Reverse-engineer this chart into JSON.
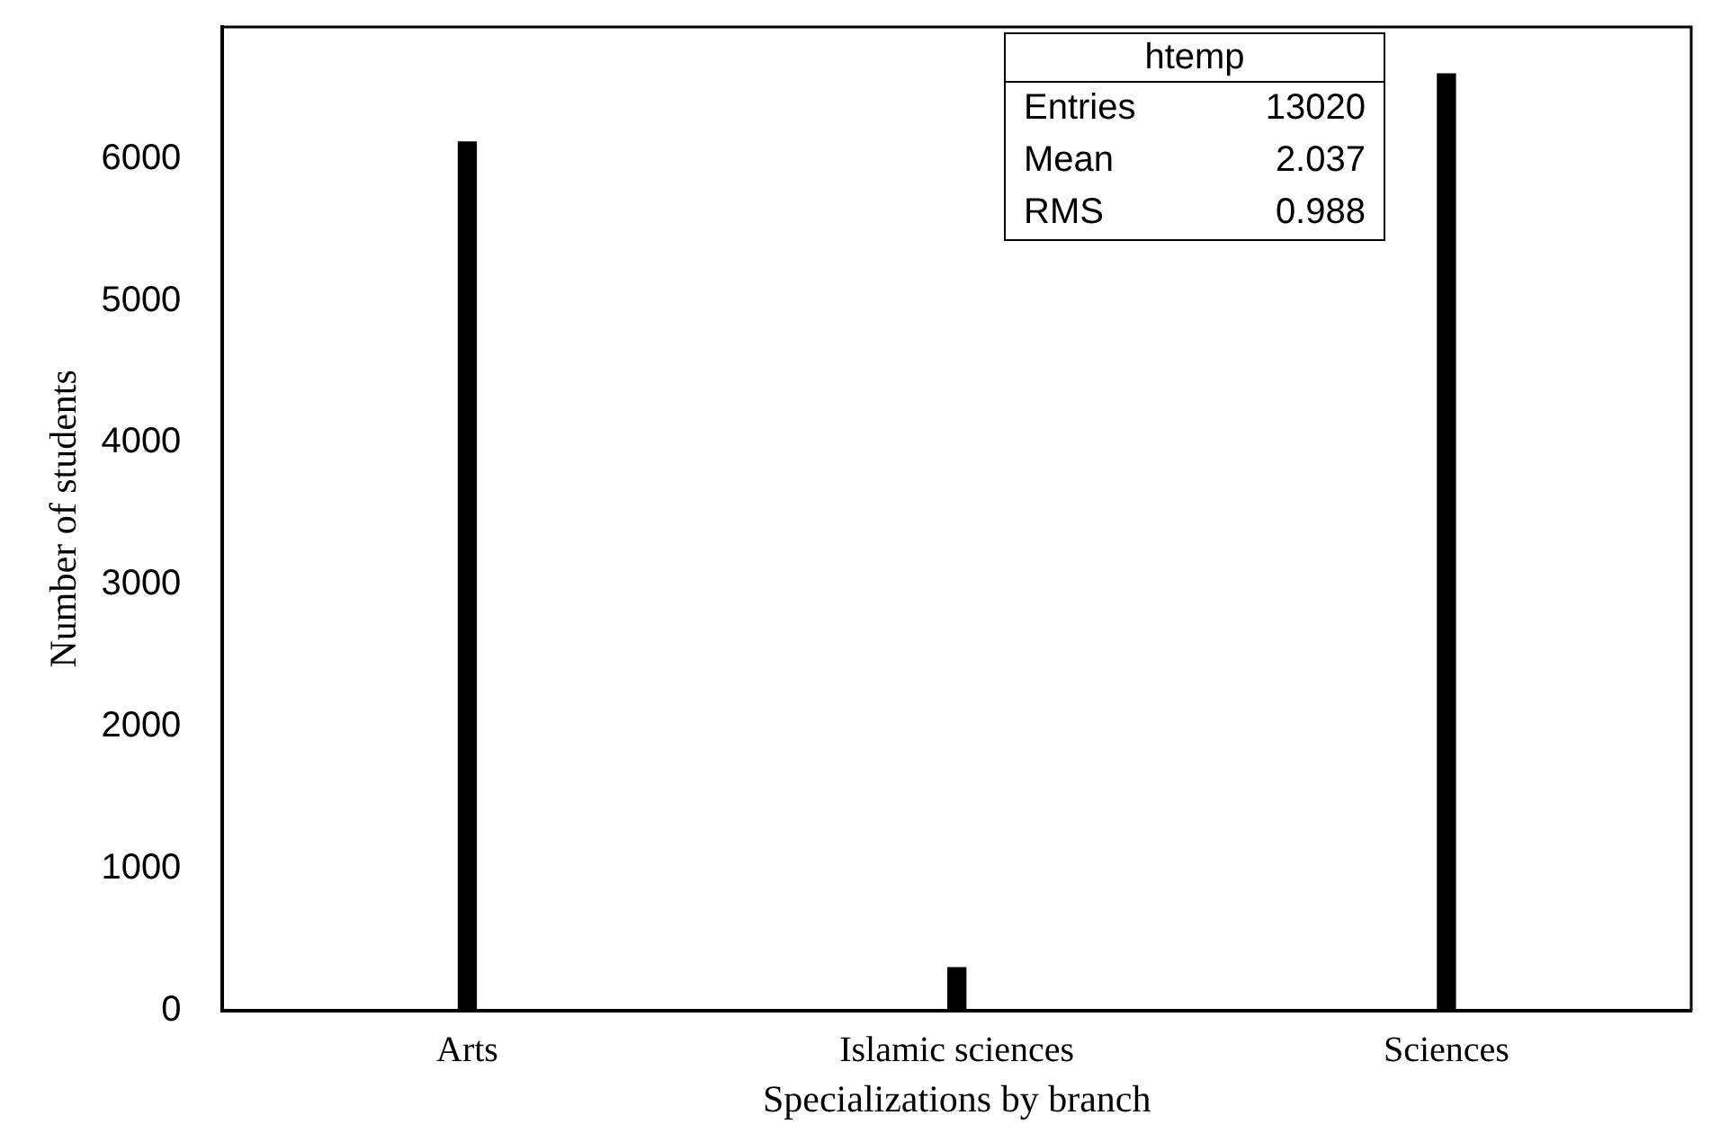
{
  "chart_data": {
    "type": "bar",
    "xlabel": "Specializations by branch",
    "ylabel": "Number of students",
    "categories": [
      "Arts",
      "Islamic sciences",
      "Sciences"
    ],
    "values": [
      6120,
      300,
      6600
    ],
    "color": "#000000",
    "ylim": [
      0,
      6930
    ],
    "yticks": [
      0,
      1000,
      2000,
      3000,
      4000,
      5000,
      6000
    ],
    "grid": false,
    "legend": false,
    "annotations": [
      "htemp",
      "Entries 13020",
      "Mean 2.037",
      "RMS 0.988"
    ]
  }
}
